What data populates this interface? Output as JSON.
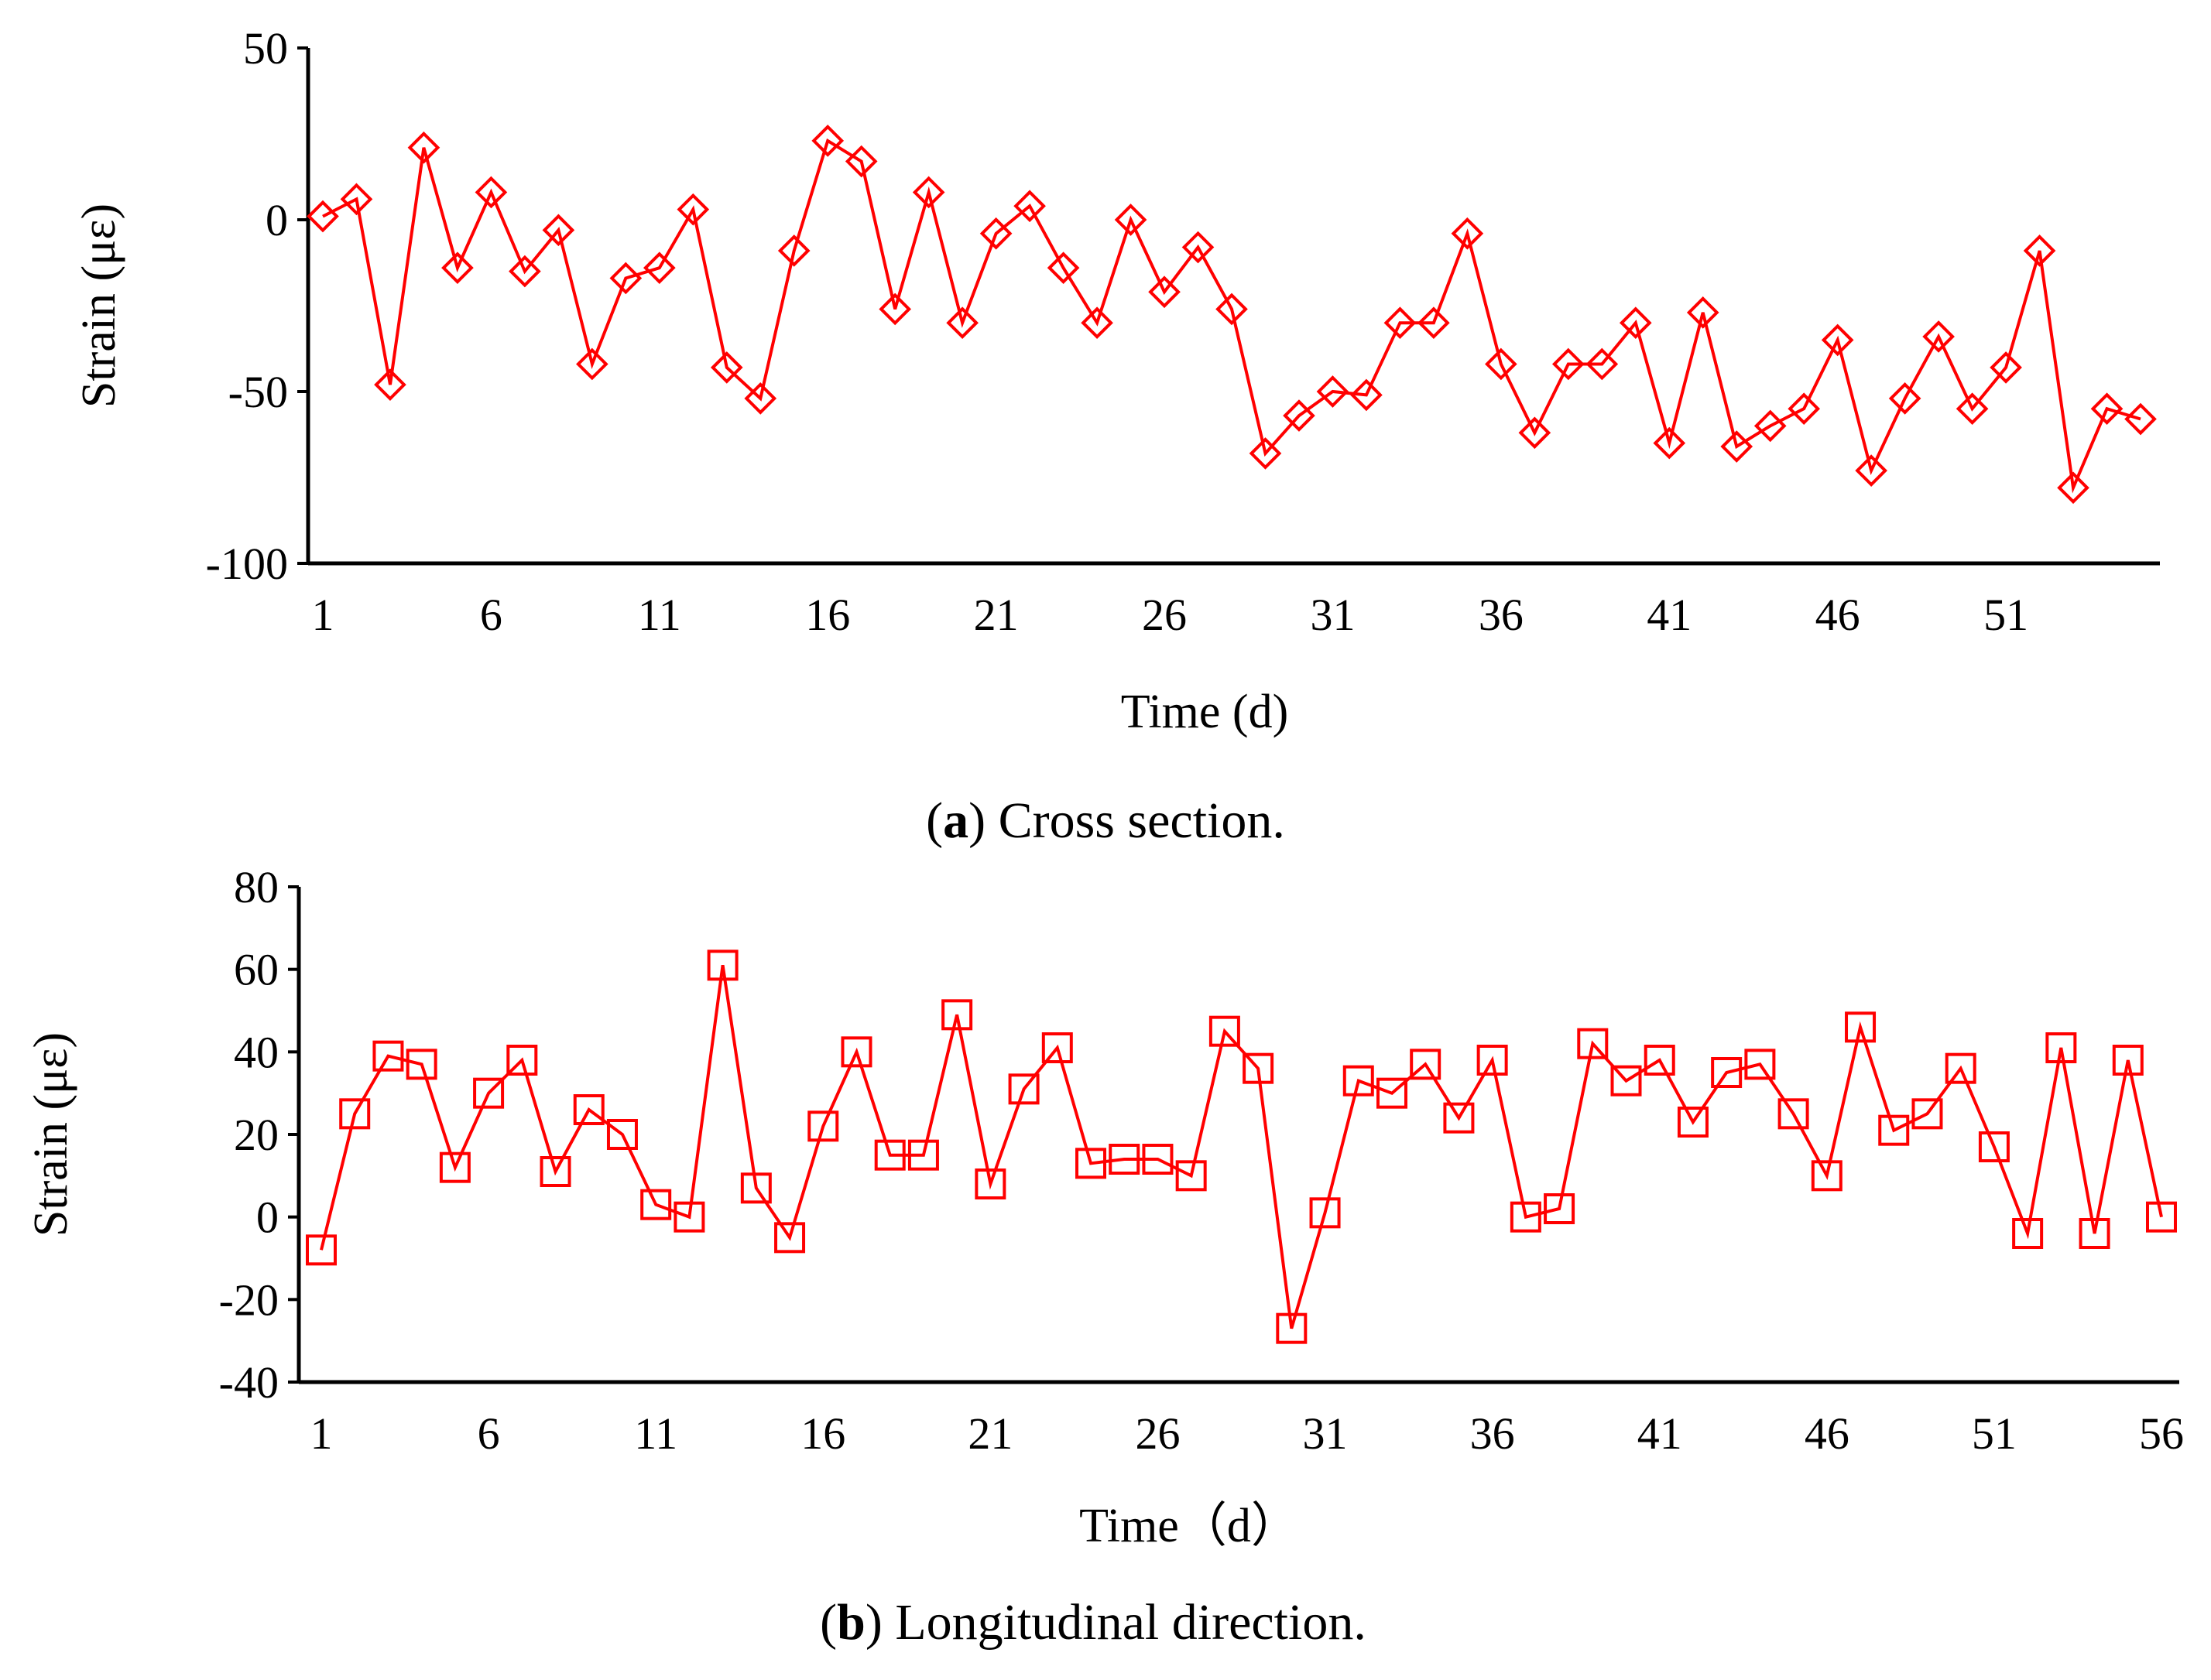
{
  "colors": {
    "series": "#ff0000",
    "axis": "#000000",
    "background": "#ffffff"
  },
  "chart_data": [
    {
      "type": "line",
      "caption": {
        "letter": "a",
        "text": "Cross section."
      },
      "xlabel": "Time (d)",
      "ylabel": "Strain (με)",
      "ylim": [
        -100,
        50
      ],
      "yticks": [
        50,
        0,
        -50,
        -100
      ],
      "xlim": [
        1,
        55
      ],
      "xticks": [
        1,
        6,
        11,
        16,
        21,
        26,
        31,
        36,
        41,
        46,
        51
      ],
      "grid": false,
      "marker": "diamond",
      "x": [
        1,
        2,
        3,
        4,
        5,
        6,
        7,
        8,
        9,
        10,
        11,
        12,
        13,
        14,
        15,
        16,
        17,
        18,
        19,
        20,
        21,
        22,
        23,
        24,
        25,
        26,
        27,
        28,
        29,
        30,
        31,
        32,
        33,
        34,
        35,
        36,
        37,
        38,
        39,
        40,
        41,
        42,
        43,
        44,
        45,
        46,
        47,
        48,
        49,
        50,
        51,
        52,
        53,
        54,
        55
      ],
      "series": [
        {
          "values": [
            1,
            6,
            -48,
            21,
            -14,
            8,
            -15,
            -3,
            -42,
            -17,
            -14,
            3,
            -43,
            -52,
            -9,
            23,
            17,
            -26,
            8,
            -30,
            -4,
            4,
            -14,
            -30,
            0,
            -21,
            -8,
            -26,
            -68,
            -57,
            -50,
            -51,
            -30,
            -30,
            -4,
            -42,
            -62,
            -42,
            -42,
            -30,
            -65,
            -27,
            -66,
            -60,
            -55,
            -35,
            -73,
            -52,
            -34,
            -55,
            -43,
            -9,
            -78,
            -55,
            -58
          ]
        }
      ]
    },
    {
      "type": "line",
      "caption": {
        "letter": "b",
        "text": "Longitudinal direction."
      },
      "xlabel": "Time（d）",
      "ylabel": "Strain (με)",
      "ylim": [
        -40,
        80
      ],
      "yticks": [
        80,
        60,
        40,
        20,
        0,
        -20,
        -40
      ],
      "xlim": [
        1,
        56
      ],
      "xticks": [
        1,
        6,
        11,
        16,
        21,
        26,
        31,
        36,
        41,
        46,
        51,
        56
      ],
      "grid": false,
      "marker": "square",
      "x": [
        1,
        2,
        3,
        4,
        5,
        6,
        7,
        8,
        9,
        10,
        11,
        12,
        13,
        14,
        15,
        16,
        17,
        18,
        19,
        20,
        21,
        22,
        23,
        24,
        25,
        26,
        27,
        28,
        29,
        30,
        31,
        32,
        33,
        34,
        35,
        36,
        37,
        38,
        39,
        40,
        41,
        42,
        43,
        44,
        45,
        46,
        47,
        48,
        49,
        50,
        51,
        52,
        53,
        54,
        55,
        56
      ],
      "series": [
        {
          "values": [
            -8,
            25,
            39,
            37,
            12,
            30,
            38,
            11,
            26,
            20,
            3,
            0,
            61,
            7,
            -5,
            22,
            40,
            15,
            15,
            49,
            8,
            31,
            41,
            13,
            14,
            14,
            10,
            45,
            36,
            -27,
            1,
            33,
            30,
            37,
            24,
            38,
            0,
            2,
            42,
            33,
            38,
            23,
            35,
            37,
            25,
            10,
            46,
            21,
            25,
            36,
            17,
            -4,
            41,
            -4,
            38,
            0
          ]
        }
      ]
    }
  ]
}
